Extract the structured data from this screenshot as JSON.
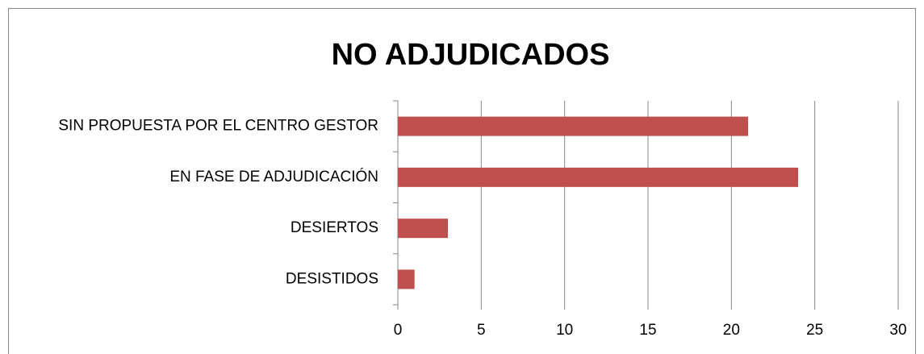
{
  "chart_data": {
    "type": "bar",
    "orientation": "horizontal",
    "title": "NO ADJUDICADOS",
    "categories": [
      "SIN PROPUESTA POR EL CENTRO GESTOR",
      "EN FASE DE ADJUDICACIÓN",
      "DESIERTOS",
      "DESISTIDOS"
    ],
    "values": [
      21,
      24,
      3,
      1
    ],
    "color": "#c0504d",
    "xlim": [
      0,
      30
    ],
    "xticks": [
      0,
      5,
      10,
      15,
      20,
      25,
      30
    ],
    "grid": true
  }
}
